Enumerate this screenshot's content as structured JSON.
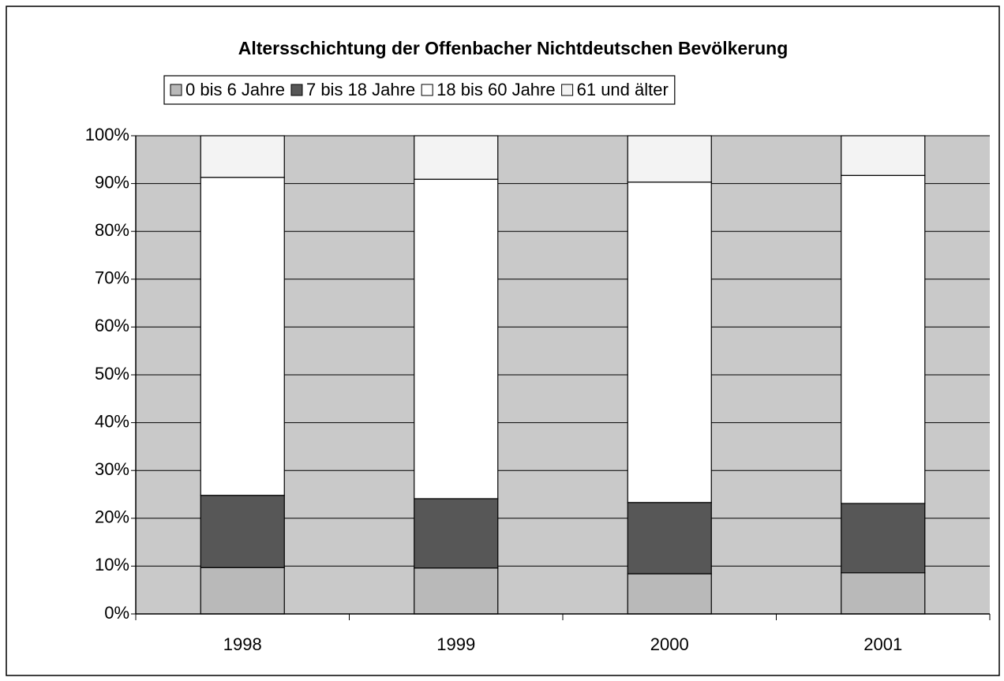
{
  "chart_data": {
    "type": "bar",
    "stacked": true,
    "title": "Altersschichtung der Offenbacher Nichtdeutschen Bevölkerung",
    "categories": [
      "1998",
      "1999",
      "2000",
      "2001"
    ],
    "series": [
      {
        "name": "0 bis 6 Jahre",
        "color": "#b9b9b9",
        "values": [
          9.7,
          9.6,
          8.4,
          8.6
        ]
      },
      {
        "name": "7 bis 18 Jahre",
        "color": "#575757",
        "values": [
          15.1,
          14.5,
          14.9,
          14.5
        ]
      },
      {
        "name": "18 bis 60 Jahre",
        "color": "#ffffff",
        "values": [
          66.5,
          66.8,
          67.0,
          68.6
        ]
      },
      {
        "name": "61 und älter",
        "color": "#f3f3f3",
        "values": [
          8.7,
          9.1,
          9.7,
          8.3
        ]
      }
    ],
    "ylim": [
      0,
      100
    ],
    "yticks": [
      {
        "value": 0,
        "label": "0%"
      },
      {
        "value": 10,
        "label": "10%"
      },
      {
        "value": 20,
        "label": "20%"
      },
      {
        "value": 30,
        "label": "30%"
      },
      {
        "value": 40,
        "label": "40%"
      },
      {
        "value": 50,
        "label": "50%"
      },
      {
        "value": 60,
        "label": "60%"
      },
      {
        "value": 70,
        "label": "70%"
      },
      {
        "value": 80,
        "label": "80%"
      },
      {
        "value": 90,
        "label": "90%"
      },
      {
        "value": 100,
        "label": "100%"
      }
    ],
    "grid": true,
    "plot_background": "#c9c9c9"
  }
}
